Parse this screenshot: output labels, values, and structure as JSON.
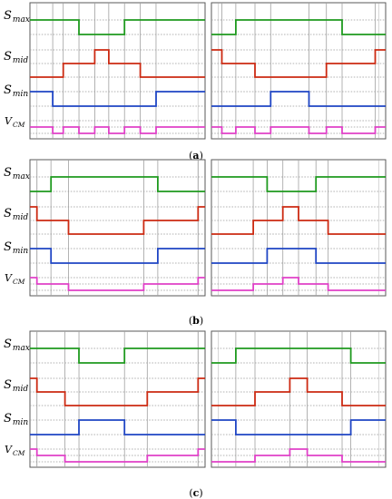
{
  "colors": {
    "s_max": "#1e9a1e",
    "s_mid": "#cc2a12",
    "s_min": "#1f45c4",
    "v_cm": "#e040c8"
  },
  "labels": {
    "s_max": {
      "main": "S",
      "sub": "max"
    },
    "s_mid": {
      "main": "S",
      "sub": "mid"
    },
    "s_min": {
      "main": "S",
      "sub": "min"
    },
    "v_cm": {
      "main": "V",
      "sub": "CM"
    }
  },
  "panels": [
    {
      "caption_pre": "(",
      "caption_letter": "a",
      "caption_post": ")",
      "left": {
        "s_max": [
          [
            0,
            1
          ],
          [
            0.28,
            0
          ],
          [
            0.54,
            1
          ]
        ],
        "s_mid": [
          [
            0,
            0
          ],
          [
            0.19,
            1
          ],
          [
            0.37,
            2
          ],
          [
            0.45,
            1
          ],
          [
            0.63,
            0
          ]
        ],
        "s_min": [
          [
            0,
            1
          ],
          [
            0.13,
            0
          ],
          [
            0.72,
            1
          ]
        ],
        "v_cm": [
          [
            0,
            1
          ],
          [
            0.13,
            0
          ],
          [
            0.19,
            1
          ],
          [
            0.28,
            0
          ],
          [
            0.37,
            1
          ],
          [
            0.45,
            0
          ],
          [
            0.54,
            1
          ],
          [
            0.63,
            0
          ],
          [
            0.72,
            1
          ]
        ]
      },
      "right": {
        "s_max": [
          [
            0,
            0
          ],
          [
            0.14,
            1
          ],
          [
            0.75,
            0
          ]
        ],
        "s_mid": [
          [
            0,
            2
          ],
          [
            0.06,
            1
          ],
          [
            0.25,
            0
          ],
          [
            0.66,
            1
          ],
          [
            0.94,
            2
          ]
        ],
        "s_min": [
          [
            0,
            0
          ],
          [
            0.34,
            1
          ],
          [
            0.56,
            0
          ]
        ],
        "v_cm": [
          [
            0,
            1
          ],
          [
            0.06,
            0
          ],
          [
            0.14,
            1
          ],
          [
            0.25,
            0
          ],
          [
            0.34,
            1
          ],
          [
            0.56,
            0
          ],
          [
            0.66,
            1
          ],
          [
            0.75,
            0
          ],
          [
            0.94,
            1
          ]
        ]
      }
    },
    {
      "caption_pre": "(",
      "caption_letter": "b",
      "caption_post": ")",
      "left": {
        "s_max": [
          [
            0,
            0
          ],
          [
            0.12,
            1
          ],
          [
            0.73,
            0
          ]
        ],
        "s_mid": [
          [
            0,
            2
          ],
          [
            0.04,
            1
          ],
          [
            0.22,
            0
          ],
          [
            0.65,
            1
          ],
          [
            0.96,
            2
          ]
        ],
        "s_min": [
          [
            0,
            1
          ],
          [
            0.12,
            0
          ],
          [
            0.73,
            1
          ]
        ],
        "v_cm": [
          [
            0,
            2
          ],
          [
            0.04,
            1
          ],
          [
            0.22,
            0
          ],
          [
            0.65,
            1
          ],
          [
            0.96,
            2
          ]
        ]
      },
      "right": {
        "s_max": [
          [
            0,
            1
          ],
          [
            0.32,
            0
          ],
          [
            0.6,
            1
          ]
        ],
        "s_mid": [
          [
            0,
            0
          ],
          [
            0.24,
            1
          ],
          [
            0.41,
            2
          ],
          [
            0.5,
            1
          ],
          [
            0.67,
            0
          ]
        ],
        "s_min": [
          [
            0,
            0
          ],
          [
            0.32,
            1
          ],
          [
            0.6,
            0
          ]
        ],
        "v_cm": [
          [
            0,
            0
          ],
          [
            0.24,
            1
          ],
          [
            0.41,
            2
          ],
          [
            0.5,
            1
          ],
          [
            0.67,
            0
          ]
        ]
      }
    },
    {
      "caption_pre": "(",
      "caption_letter": "c",
      "caption_post": ")",
      "left": {
        "s_max": [
          [
            0,
            1
          ],
          [
            0.28,
            0
          ],
          [
            0.54,
            1
          ]
        ],
        "s_mid": [
          [
            0,
            2
          ],
          [
            0.04,
            1
          ],
          [
            0.2,
            0
          ],
          [
            0.67,
            1
          ],
          [
            0.96,
            2
          ]
        ],
        "s_min": [
          [
            0,
            0
          ],
          [
            0.28,
            1
          ],
          [
            0.54,
            0
          ]
        ],
        "v_cm": [
          [
            0,
            2
          ],
          [
            0.04,
            1
          ],
          [
            0.2,
            0
          ],
          [
            0.67,
            1
          ],
          [
            0.96,
            2
          ]
        ]
      },
      "right": {
        "s_max": [
          [
            0,
            0
          ],
          [
            0.14,
            1
          ],
          [
            0.8,
            0
          ]
        ],
        "s_mid": [
          [
            0,
            0
          ],
          [
            0.25,
            1
          ],
          [
            0.45,
            2
          ],
          [
            0.55,
            1
          ],
          [
            0.75,
            0
          ]
        ],
        "s_min": [
          [
            0,
            1
          ],
          [
            0.14,
            0
          ],
          [
            0.8,
            1
          ]
        ],
        "v_cm": [
          [
            0,
            0
          ],
          [
            0.25,
            1
          ],
          [
            0.45,
            2
          ],
          [
            0.55,
            1
          ],
          [
            0.75,
            0
          ]
        ]
      }
    }
  ]
}
